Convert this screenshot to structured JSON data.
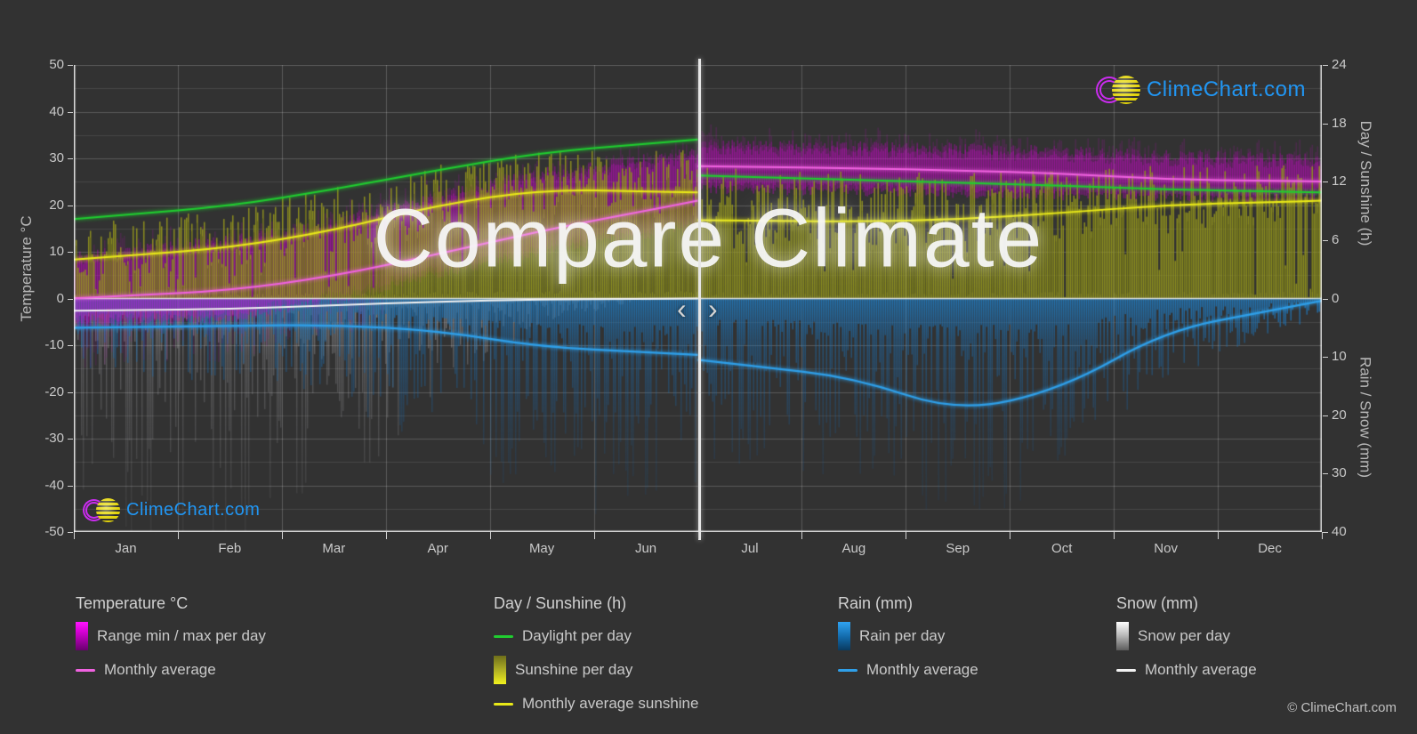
{
  "watermark": "Compare Climate",
  "branding": {
    "logo_text": "ClimeChart.com",
    "copyright": "© ClimeChart.com"
  },
  "divider": {
    "left_chevron": "‹",
    "right_chevron": "›"
  },
  "axes": {
    "temp": {
      "title": "Temperature °C",
      "ticks": [
        50,
        40,
        30,
        20,
        10,
        0,
        -10,
        -20,
        -30,
        -40,
        -50
      ]
    },
    "day": {
      "title": "Day / Sunshine (h)",
      "ticks": [
        24,
        18,
        12,
        6,
        0
      ]
    },
    "rain": {
      "title": "Rain / Snow (mm)",
      "ticks": [
        0,
        10,
        20,
        30,
        40
      ]
    },
    "months": [
      "Jan",
      "Feb",
      "Mar",
      "Apr",
      "May",
      "Jun",
      "Jul",
      "Aug",
      "Sep",
      "Oct",
      "Nov",
      "Dec"
    ]
  },
  "legend": {
    "columns": [
      {
        "title": "Temperature °C",
        "items": [
          {
            "swatch": "block grad-magenta",
            "icon": "temp-range-swatch",
            "label": "Range min / max per day"
          },
          {
            "swatch": "line line-magenta",
            "icon": "temp-average-line-swatch",
            "label": "Monthly average"
          }
        ]
      },
      {
        "title": "Day / Sunshine (h)",
        "items": [
          {
            "swatch": "line line-green",
            "icon": "daylight-line-swatch",
            "label": "Daylight per day"
          },
          {
            "swatch": "block grad-yellow",
            "icon": "sunshine-swatch",
            "label": "Sunshine per day"
          },
          {
            "swatch": "line line-yellow",
            "icon": "sunshine-average-line-swatch",
            "label": "Monthly average sunshine"
          }
        ]
      },
      {
        "title": "Rain (mm)",
        "items": [
          {
            "swatch": "block grad-blue",
            "icon": "rain-swatch",
            "label": "Rain per day"
          },
          {
            "swatch": "line line-blue",
            "icon": "rain-average-line-swatch",
            "label": "Monthly average"
          }
        ]
      },
      {
        "title": "Snow (mm)",
        "items": [
          {
            "swatch": "block grad-white",
            "icon": "snow-swatch",
            "label": "Snow per day"
          },
          {
            "swatch": "line line-white",
            "icon": "snow-average-line-swatch",
            "label": "Monthly average"
          }
        ]
      }
    ]
  },
  "colors": {
    "background": "#323232",
    "grid_major": "rgba(255,255,255,0.20)",
    "grid_minor": "rgba(255,255,255,0.10)",
    "axis_line": "rgba(255,255,255,0.85)",
    "zero_line": "rgba(245,245,245,0.85)",
    "daylight_line": "#20cd30",
    "sunshine_fill": "rgba(150,153,27,0.88)",
    "sunshine_line": "#e9e918",
    "temp_range_fill": "#cc00cc",
    "temp_avg_line": "#f062e0",
    "rain_fill": "#1d6fae",
    "rain_line": "#2f9fe8",
    "snow_fill": "#c8c8cc",
    "snow_line": "#f4f4f4",
    "logo_blue": "#2196f3",
    "axis_text": "#c9c9c9"
  },
  "chart_data": {
    "type": "area",
    "title": "Compare Climate",
    "temp_axis_range": [
      -50,
      50
    ],
    "day_axis_range": [
      0,
      24
    ],
    "rain_axis_range": [
      0,
      40
    ],
    "grid": true,
    "x_months": [
      "Jan",
      "Feb",
      "Mar",
      "Apr",
      "May",
      "Jun",
      "Jul",
      "Aug",
      "Sep",
      "Oct",
      "Nov",
      "Dec"
    ],
    "divider_month": "Jul",
    "halves": [
      {
        "span": "Jan–Jun",
        "months": [
          "Jan",
          "Feb",
          "Mar",
          "Apr",
          "May",
          "Jun"
        ],
        "daylight_h": [
          8.6,
          9.5,
          11.2,
          13.2,
          15.0,
          15.9
        ],
        "sunshine_avg_h": [
          4.4,
          5.2,
          7.0,
          9.6,
          11.2,
          11.0
        ],
        "sunshine_daily_max_h": [
          7.3,
          8.3,
          10.5,
          13.0,
          14.3,
          14.3
        ],
        "temp_avg_c": [
          0.6,
          1.7,
          4.8,
          9.5,
          14.5,
          18.8
        ],
        "temp_max_daily_c": [
          10,
          12,
          16,
          21.5,
          26.5,
          29.5
        ],
        "temp_min_daily_c": [
          -5,
          -4,
          0,
          5.5,
          10.5,
          14
        ],
        "rain_avg_mm": [
          4.9,
          4.7,
          4.5,
          5.5,
          8.3,
          9.2
        ],
        "rain_daily_max_mm": [
          14,
          14,
          18,
          26,
          36,
          38
        ],
        "snow_avg_mm": [
          2.0,
          1.8,
          1.2,
          0.5,
          0.15,
          0.05
        ],
        "snow_daily_max_mm": [
          46,
          46,
          36,
          16,
          4,
          0.5
        ]
      },
      {
        "span": "Jul–Dec",
        "months": [
          "Jul",
          "Aug",
          "Sep",
          "Oct",
          "Nov",
          "Dec"
        ],
        "daylight_h": [
          12.5,
          12.2,
          11.9,
          11.6,
          11.2,
          11.0
        ],
        "sunshine_avg_h": [
          8.0,
          7.9,
          8.1,
          8.8,
          9.6,
          9.9
        ],
        "sunshine_daily_max_h": [
          12.3,
          12.0,
          12.0,
          12.3,
          12.8,
          12.9
        ],
        "temp_avg_c": [
          28.2,
          27.9,
          27.4,
          26.8,
          25.5,
          25.2
        ],
        "temp_max_daily_c": [
          32.5,
          32.2,
          31.8,
          31.2,
          30.2,
          29.8
        ],
        "temp_min_daily_c": [
          23.5,
          23.2,
          22.8,
          22.3,
          21.8,
          21.8
        ],
        "rain_avg_mm": [
          11.5,
          13.5,
          19.5,
          15.5,
          5.5,
          2.1
        ],
        "rain_daily_max_mm": [
          30,
          32,
          38,
          34,
          14,
          7
        ],
        "snow_avg_mm": [
          0,
          0,
          0,
          0,
          0,
          0
        ],
        "snow_daily_max_mm": [
          0,
          0,
          0,
          0,
          0,
          0
        ]
      }
    ]
  }
}
